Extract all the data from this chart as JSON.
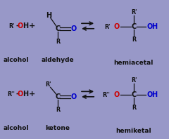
{
  "bg_color": "#9898c8",
  "panel_bg": "#a8a8d0",
  "border_color": "#5555aa",
  "text_color": "#111111",
  "red_color": "#cc0000",
  "blue_color": "#0000cc",
  "figsize": [
    2.4,
    1.98
  ],
  "dpi": 100,
  "top_panel": {
    "alcohol_r": "R'",
    "aldehyde_label": "aldehyde",
    "product_label": "hemiacetal",
    "alcohol_label": "alcohol",
    "product_r_top": "R'",
    "is_ketone": false
  },
  "bottom_panel": {
    "alcohol_r": "R''",
    "ketone_label": "ketone",
    "product_label": "hemiketal",
    "alcohol_label": "alcohol",
    "product_r_top": "R'",
    "is_ketone": true
  }
}
